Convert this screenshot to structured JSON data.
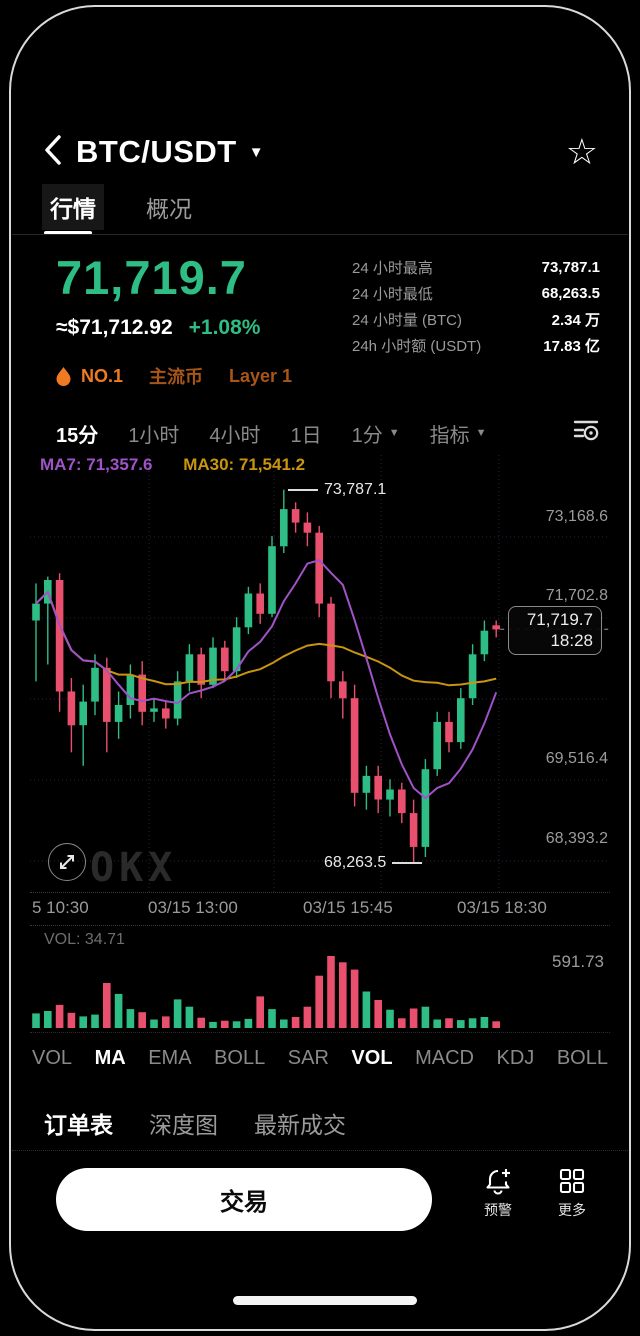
{
  "header": {
    "title": "BTC/USDT"
  },
  "tabs": [
    {
      "name": "tab-quotes",
      "label": "行情",
      "active": true
    },
    {
      "name": "tab-overview",
      "label": "概况",
      "active": false
    }
  ],
  "price": {
    "last": "71,719.7",
    "usd": "≈$71,712.92",
    "change": "+1.08%",
    "up_color": "#2ebd85"
  },
  "badges": [
    {
      "name": "badge-rank",
      "label": "NO.1",
      "rank": true
    },
    {
      "name": "badge-mainstream",
      "label": "主流币",
      "rank": false
    },
    {
      "name": "badge-layer1",
      "label": "Layer 1",
      "rank": false
    }
  ],
  "stats": [
    {
      "label": "24 小时最高",
      "value": "73,787.1"
    },
    {
      "label": "24 小时最低",
      "value": "68,263.5"
    },
    {
      "label": "24 小时量 (BTC)",
      "value": "2.34 万"
    },
    {
      "label": "24h 小时额 (USDT)",
      "value": "17.83 亿"
    }
  ],
  "timeframes": [
    {
      "name": "timeframe-15m",
      "label": "15分",
      "active": true,
      "caret": false
    },
    {
      "name": "timeframe-1h",
      "label": "1小时",
      "active": false,
      "caret": false
    },
    {
      "name": "timeframe-4h",
      "label": "4小时",
      "active": false,
      "caret": false
    },
    {
      "name": "timeframe-1d",
      "label": "1日",
      "active": false,
      "caret": false
    },
    {
      "name": "timeframe-more",
      "label": "1分",
      "active": false,
      "caret": true
    },
    {
      "name": "indicator-menu",
      "label": "指标",
      "active": false,
      "caret": true
    }
  ],
  "chart_data": {
    "type": "candlestick",
    "ma7_label": "MA7: 71,357.6",
    "ma30_label": "MA30: 71,541.2",
    "y_axis_labels": [
      "73,168.6",
      "71,702.8",
      "69,516.4",
      "68,393.2"
    ],
    "x_axis_labels": [
      "5 10:30",
      "03/15 13:00",
      "03/15 15:45",
      "03/15 18:30"
    ],
    "high_annotation": "73,787.1",
    "low_annotation": "68,263.5",
    "price_tag": {
      "price": "71,719.7",
      "time": "18:28"
    },
    "watermark": "OKX",
    "colors": {
      "up": "#2ebd85",
      "down": "#e8506e",
      "ma7": "#a052c7",
      "ma30": "#c9940f"
    },
    "candles": [
      [
        71850,
        72400,
        70950,
        72100
      ],
      [
        72100,
        72500,
        71200,
        72450
      ],
      [
        72450,
        72550,
        70500,
        70800
      ],
      [
        70800,
        71000,
        69900,
        70300
      ],
      [
        70300,
        70900,
        69700,
        70650
      ],
      [
        70650,
        71350,
        70450,
        71150
      ],
      [
        71150,
        71300,
        69900,
        70350
      ],
      [
        70350,
        70800,
        70100,
        70600
      ],
      [
        70600,
        71200,
        70400,
        71050
      ],
      [
        71050,
        71250,
        70300,
        70500
      ],
      [
        70500,
        70700,
        70350,
        70550
      ],
      [
        70550,
        70650,
        70250,
        70400
      ],
      [
        70400,
        71100,
        70300,
        70950
      ],
      [
        70950,
        71500,
        70800,
        71350
      ],
      [
        71350,
        71450,
        70700,
        70900
      ],
      [
        70900,
        71600,
        70850,
        71450
      ],
      [
        71450,
        71550,
        70950,
        71100
      ],
      [
        71100,
        71900,
        71000,
        71750
      ],
      [
        71750,
        72350,
        71650,
        72250
      ],
      [
        72250,
        72400,
        71800,
        71950
      ],
      [
        71950,
        73100,
        71900,
        72950
      ],
      [
        72950,
        73787.1,
        72850,
        73500
      ],
      [
        73500,
        73600,
        73150,
        73300
      ],
      [
        73300,
        73450,
        72950,
        73150
      ],
      [
        73150,
        73250,
        71900,
        72100
      ],
      [
        72100,
        72200,
        70700,
        70950
      ],
      [
        70950,
        71100,
        70400,
        70700
      ],
      [
        70700,
        70900,
        69100,
        69300
      ],
      [
        69300,
        69700,
        69050,
        69550
      ],
      [
        69550,
        69700,
        69000,
        69200
      ],
      [
        69200,
        69500,
        68950,
        69350
      ],
      [
        69350,
        69450,
        68850,
        69000
      ],
      [
        69000,
        69200,
        68263.5,
        68500
      ],
      [
        68500,
        69800,
        68350,
        69650
      ],
      [
        69650,
        70500,
        69550,
        70350
      ],
      [
        70350,
        70500,
        69900,
        70050
      ],
      [
        70050,
        70850,
        69950,
        70700
      ],
      [
        70700,
        71500,
        70600,
        71350
      ],
      [
        71350,
        71850,
        71250,
        71700
      ],
      [
        71780,
        71850,
        71600,
        71719.7
      ]
    ],
    "volumes": [
      120,
      140,
      190,
      125,
      95,
      110,
      370,
      280,
      155,
      130,
      70,
      95,
      235,
      175,
      85,
      50,
      60,
      55,
      75,
      260,
      155,
      70,
      90,
      175,
      430,
      591.73,
      540,
      480,
      300,
      230,
      150,
      80,
      160,
      175,
      70,
      80,
      65,
      80,
      90,
      55
    ],
    "volume_label": "VOL: 34.71",
    "volume_max_label": "591.73"
  },
  "indicators": [
    {
      "name": "indicator-vol-main",
      "label": "VOL",
      "active": false
    },
    {
      "name": "indicator-ma",
      "label": "MA",
      "active": true
    },
    {
      "name": "indicator-ema",
      "label": "EMA",
      "active": false
    },
    {
      "name": "indicator-boll",
      "label": "BOLL",
      "active": false
    },
    {
      "name": "indicator-sar",
      "label": "SAR",
      "active": false
    },
    {
      "name": "indicator-vol-sub",
      "label": "VOL",
      "active": true
    },
    {
      "name": "indicator-macd",
      "label": "MACD",
      "active": false
    },
    {
      "name": "indicator-kdj",
      "label": "KDJ",
      "active": false
    },
    {
      "name": "indicator-boll-sub",
      "label": "BOLL",
      "active": false
    }
  ],
  "bottom_tabs": [
    {
      "name": "tab-order-book",
      "label": "订单表",
      "active": true
    },
    {
      "name": "tab-depth-chart",
      "label": "深度图",
      "active": false
    },
    {
      "name": "tab-latest-trades",
      "label": "最新成交",
      "active": false
    }
  ],
  "actions": {
    "trade": "交易",
    "alert": "预警",
    "more": "更多"
  }
}
